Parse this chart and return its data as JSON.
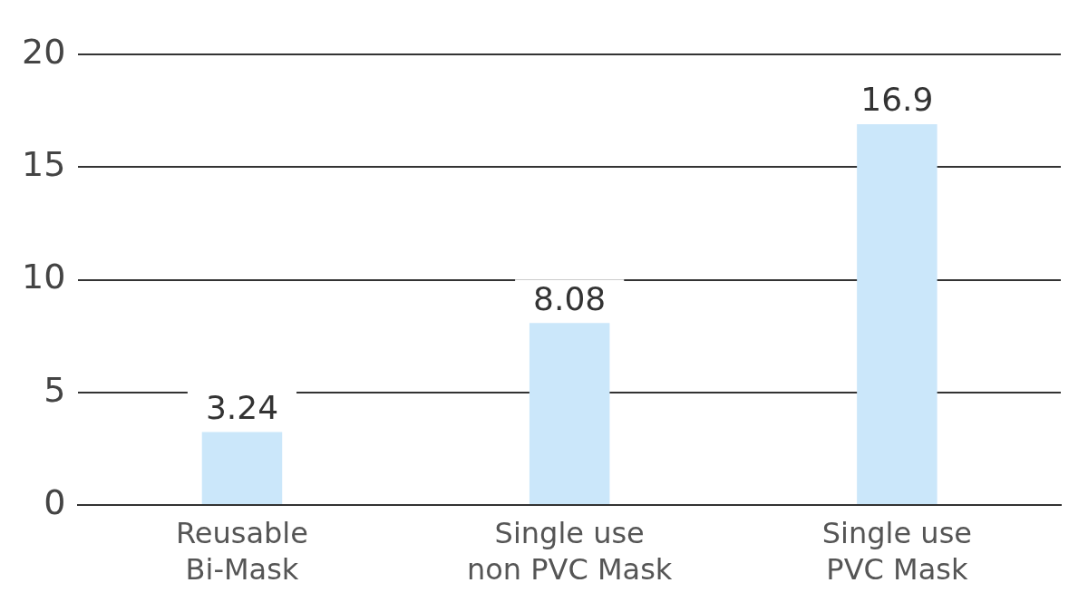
{
  "chart_data": {
    "type": "bar",
    "categories": [
      "Reusable\nBi-Mask",
      "Single use\nnon PVC Mask",
      "Single use\nPVC Mask"
    ],
    "values": [
      3.24,
      8.08,
      16.9
    ],
    "color": "#cbe7fa",
    "ylim": [
      0,
      20
    ],
    "yticks": [
      0,
      5,
      10,
      15,
      20
    ],
    "grid": "y",
    "legend": false,
    "data_labels": true
  }
}
